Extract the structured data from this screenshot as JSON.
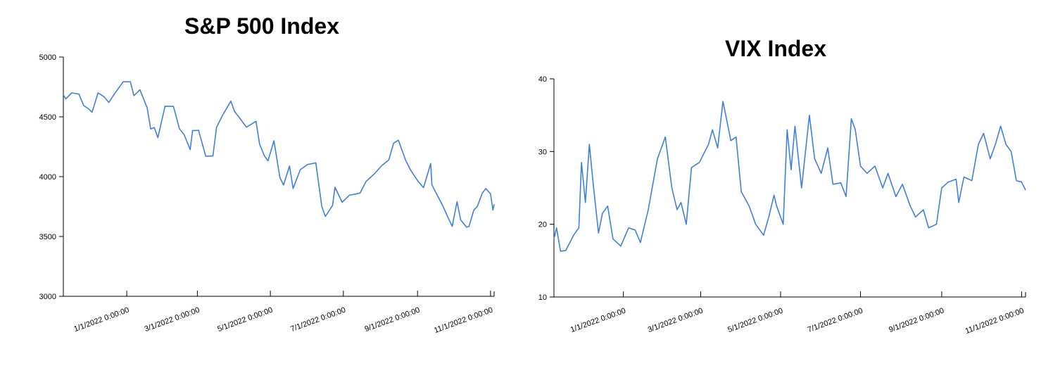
{
  "accent_color": "#3f7fe0",
  "chart_data": [
    {
      "type": "line",
      "title": "S&P 500 Index",
      "xlabel": "",
      "ylabel": "",
      "ylim": [
        3000,
        5000
      ],
      "xlim": [
        "2021-11-09",
        "2022-11-04"
      ],
      "y_ticks": [
        3000,
        3500,
        4000,
        4500,
        5000
      ],
      "x_ticks": [
        {
          "date": "2022-01-01",
          "label": "1/1/2022 0:00:00"
        },
        {
          "date": "2022-03-01",
          "label": "3/1/2022 0:00:00"
        },
        {
          "date": "2022-05-01",
          "label": "5/1/2022 0:00:00"
        },
        {
          "date": "2022-07-01",
          "label": "7/1/2022 0:00:00"
        },
        {
          "date": "2022-09-01",
          "label": "9/1/2022 0:00:00"
        },
        {
          "date": "2022-11-01",
          "label": "11/1/2022 0:00:00"
        }
      ],
      "grid": false,
      "series": [
        {
          "color": "#3f7fe0",
          "points": [
            [
              "2021-11-09",
              4685
            ],
            [
              "2021-11-11",
              4650
            ],
            [
              "2021-11-16",
              4700
            ],
            [
              "2021-11-22",
              4690
            ],
            [
              "2021-11-26",
              4595
            ],
            [
              "2021-11-30",
              4567
            ],
            [
              "2021-12-03",
              4538
            ],
            [
              "2021-12-08",
              4700
            ],
            [
              "2021-12-13",
              4668
            ],
            [
              "2021-12-17",
              4620
            ],
            [
              "2021-12-22",
              4696
            ],
            [
              "2021-12-29",
              4793
            ],
            [
              "2022-01-04",
              4793
            ],
            [
              "2022-01-07",
              4677
            ],
            [
              "2022-01-12",
              4726
            ],
            [
              "2022-01-18",
              4577
            ],
            [
              "2022-01-21",
              4398
            ],
            [
              "2022-01-24",
              4410
            ],
            [
              "2022-01-27",
              4326
            ],
            [
              "2022-02-02",
              4589
            ],
            [
              "2022-02-09",
              4587
            ],
            [
              "2022-02-14",
              4401
            ],
            [
              "2022-02-18",
              4349
            ],
            [
              "2022-02-23",
              4226
            ],
            [
              "2022-02-25",
              4385
            ],
            [
              "2022-03-02",
              4387
            ],
            [
              "2022-03-08",
              4171
            ],
            [
              "2022-03-14",
              4173
            ],
            [
              "2022-03-17",
              4412
            ],
            [
              "2022-03-22",
              4512
            ],
            [
              "2022-03-29",
              4632
            ],
            [
              "2022-04-01",
              4546
            ],
            [
              "2022-04-06",
              4482
            ],
            [
              "2022-04-11",
              4413
            ],
            [
              "2022-04-19",
              4463
            ],
            [
              "2022-04-22",
              4272
            ],
            [
              "2022-04-26",
              4175
            ],
            [
              "2022-04-29",
              4132
            ],
            [
              "2022-05-04",
              4300
            ],
            [
              "2022-05-09",
              3991
            ],
            [
              "2022-05-12",
              3930
            ],
            [
              "2022-05-17",
              4089
            ],
            [
              "2022-05-20",
              3901
            ],
            [
              "2022-05-26",
              4058
            ],
            [
              "2022-06-01",
              4101
            ],
            [
              "2022-06-08",
              4115
            ],
            [
              "2022-06-13",
              3750
            ],
            [
              "2022-06-16",
              3667
            ],
            [
              "2022-06-22",
              3760
            ],
            [
              "2022-06-24",
              3912
            ],
            [
              "2022-06-30",
              3785
            ],
            [
              "2022-07-06",
              3845
            ],
            [
              "2022-07-11",
              3854
            ],
            [
              "2022-07-15",
              3863
            ],
            [
              "2022-07-20",
              3960
            ],
            [
              "2022-07-27",
              4024
            ],
            [
              "2022-08-02",
              4091
            ],
            [
              "2022-08-08",
              4140
            ],
            [
              "2022-08-12",
              4280
            ],
            [
              "2022-08-16",
              4305
            ],
            [
              "2022-08-22",
              4138
            ],
            [
              "2022-08-26",
              4058
            ],
            [
              "2022-09-01",
              3967
            ],
            [
              "2022-09-06",
              3908
            ],
            [
              "2022-09-12",
              4110
            ],
            [
              "2022-09-13",
              3932
            ],
            [
              "2022-09-16",
              3873
            ],
            [
              "2022-09-22",
              3758
            ],
            [
              "2022-09-27",
              3647
            ],
            [
              "2022-09-30",
              3585
            ],
            [
              "2022-10-04",
              3791
            ],
            [
              "2022-10-07",
              3639
            ],
            [
              "2022-10-12",
              3577
            ],
            [
              "2022-10-14",
              3583
            ],
            [
              "2022-10-18",
              3720
            ],
            [
              "2022-10-21",
              3752
            ],
            [
              "2022-10-25",
              3859
            ],
            [
              "2022-10-28",
              3901
            ],
            [
              "2022-11-01",
              3856
            ],
            [
              "2022-11-03",
              3720
            ],
            [
              "2022-11-04",
              3770
            ]
          ]
        }
      ]
    },
    {
      "type": "line",
      "title": "VIX Index",
      "xlabel": "",
      "ylabel": "",
      "ylim": [
        10,
        40
      ],
      "xlim": [
        "2021-11-09",
        "2022-11-04"
      ],
      "y_ticks": [
        10,
        20,
        30,
        40
      ],
      "x_ticks": [
        {
          "date": "2022-01-01",
          "label": "1/1/2022 0:00:00"
        },
        {
          "date": "2022-03-01",
          "label": "3/1/2022 0:00:00"
        },
        {
          "date": "2022-05-01",
          "label": "5/1/2022 0:00:00"
        },
        {
          "date": "2022-07-01",
          "label": "7/1/2022 0:00:00"
        },
        {
          "date": "2022-09-01",
          "label": "9/1/2022 0:00:00"
        },
        {
          "date": "2022-11-01",
          "label": "11/1/2022 0:00:00"
        }
      ],
      "grid": false,
      "series": [
        {
          "color": "#3f7fe0",
          "points": [
            [
              "2021-11-09",
              18.0
            ],
            [
              "2021-11-11",
              19.5
            ],
            [
              "2021-11-14",
              16.3
            ],
            [
              "2021-11-18",
              16.4
            ],
            [
              "2021-11-24",
              18.5
            ],
            [
              "2021-11-28",
              19.5
            ],
            [
              "2021-11-30",
              28.5
            ],
            [
              "2021-12-03",
              23.0
            ],
            [
              "2021-12-06",
              31.0
            ],
            [
              "2021-12-09",
              25.5
            ],
            [
              "2021-12-13",
              18.8
            ],
            [
              "2021-12-16",
              21.5
            ],
            [
              "2021-12-20",
              22.5
            ],
            [
              "2021-12-24",
              18.0
            ],
            [
              "2021-12-30",
              17.0
            ],
            [
              "2022-01-05",
              19.5
            ],
            [
              "2022-01-10",
              19.2
            ],
            [
              "2022-01-14",
              17.5
            ],
            [
              "2022-01-20",
              22.0
            ],
            [
              "2022-01-27",
              29.0
            ],
            [
              "2022-02-02",
              32.0
            ],
            [
              "2022-02-07",
              25.0
            ],
            [
              "2022-02-11",
              22.0
            ],
            [
              "2022-02-14",
              23.0
            ],
            [
              "2022-02-18",
              20.0
            ],
            [
              "2022-02-22",
              27.8
            ],
            [
              "2022-02-28",
              28.5
            ],
            [
              "2022-03-07",
              31.0
            ],
            [
              "2022-03-10",
              33.0
            ],
            [
              "2022-03-14",
              30.5
            ],
            [
              "2022-03-18",
              36.9
            ],
            [
              "2022-03-24",
              31.5
            ],
            [
              "2022-03-28",
              32.0
            ],
            [
              "2022-04-01",
              24.5
            ],
            [
              "2022-04-07",
              22.5
            ],
            [
              "2022-04-12",
              20.0
            ],
            [
              "2022-04-18",
              18.5
            ],
            [
              "2022-04-22",
              21.0
            ],
            [
              "2022-04-26",
              24.0
            ],
            [
              "2022-04-28",
              22.5
            ],
            [
              "2022-05-03",
              20.0
            ],
            [
              "2022-05-06",
              33.0
            ],
            [
              "2022-05-09",
              27.5
            ],
            [
              "2022-05-12",
              33.5
            ],
            [
              "2022-05-17",
              25.0
            ],
            [
              "2022-05-23",
              35.0
            ],
            [
              "2022-05-27",
              29.0
            ],
            [
              "2022-06-01",
              27.0
            ],
            [
              "2022-06-06",
              30.5
            ],
            [
              "2022-06-10",
              25.5
            ],
            [
              "2022-06-16",
              25.7
            ],
            [
              "2022-06-20",
              23.8
            ],
            [
              "2022-06-24",
              34.5
            ],
            [
              "2022-06-27",
              33.0
            ],
            [
              "2022-07-01",
              28.0
            ],
            [
              "2022-07-06",
              27.0
            ],
            [
              "2022-07-12",
              28.0
            ],
            [
              "2022-07-18",
              25.0
            ],
            [
              "2022-07-22",
              27.0
            ],
            [
              "2022-07-28",
              23.8
            ],
            [
              "2022-08-02",
              25.5
            ],
            [
              "2022-08-08",
              22.5
            ],
            [
              "2022-08-12",
              21.0
            ],
            [
              "2022-08-18",
              22.0
            ],
            [
              "2022-08-22",
              19.5
            ],
            [
              "2022-08-28",
              20.0
            ],
            [
              "2022-09-01",
              25.0
            ],
            [
              "2022-09-06",
              25.8
            ],
            [
              "2022-09-12",
              26.2
            ],
            [
              "2022-09-14",
              23.0
            ],
            [
              "2022-09-18",
              26.5
            ],
            [
              "2022-09-24",
              26.0
            ],
            [
              "2022-09-29",
              31.0
            ],
            [
              "2022-10-03",
              32.5
            ],
            [
              "2022-10-08",
              29.0
            ],
            [
              "2022-10-12",
              31.0
            ],
            [
              "2022-10-16",
              33.5
            ],
            [
              "2022-10-20",
              31.0
            ],
            [
              "2022-10-24",
              30.0
            ],
            [
              "2022-10-28",
              26.0
            ],
            [
              "2022-11-01",
              25.8
            ],
            [
              "2022-11-04",
              24.7
            ]
          ]
        }
      ]
    }
  ]
}
